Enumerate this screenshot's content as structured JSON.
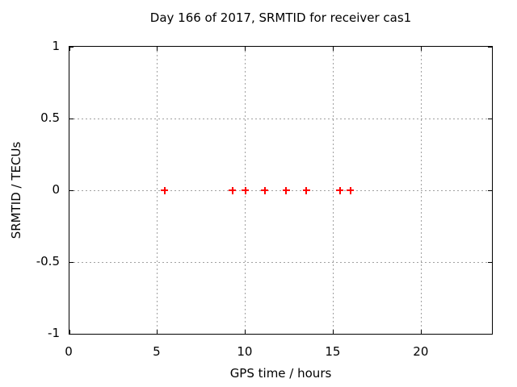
{
  "chart_data": {
    "type": "scatter",
    "title": "Day 166 of 2017, SRMTID for receiver cas1",
    "xlabel": "GPS time / hours",
    "ylabel": "SRMTID / TECUs",
    "xlim": [
      0,
      24
    ],
    "ylim": [
      -1,
      1
    ],
    "xticks": [
      0,
      5,
      10,
      15,
      20
    ],
    "yticks": [
      -1,
      -0.5,
      0,
      0.5,
      1
    ],
    "grid": "dotted-at-major-tics",
    "legend": "none",
    "series": [
      {
        "name": "SRMTID",
        "marker": "plus",
        "color": "#ff0000",
        "x": [
          5.4,
          9.25,
          10.0,
          11.1,
          12.3,
          13.45,
          15.35,
          15.95
        ],
        "y": [
          0,
          0,
          0,
          0,
          0,
          0,
          0,
          0
        ]
      }
    ],
    "colors": {
      "marker": "#ff0000",
      "grid": "#a0a0a0",
      "axis": "#000000",
      "text": "#000000",
      "background": "#ffffff"
    }
  }
}
